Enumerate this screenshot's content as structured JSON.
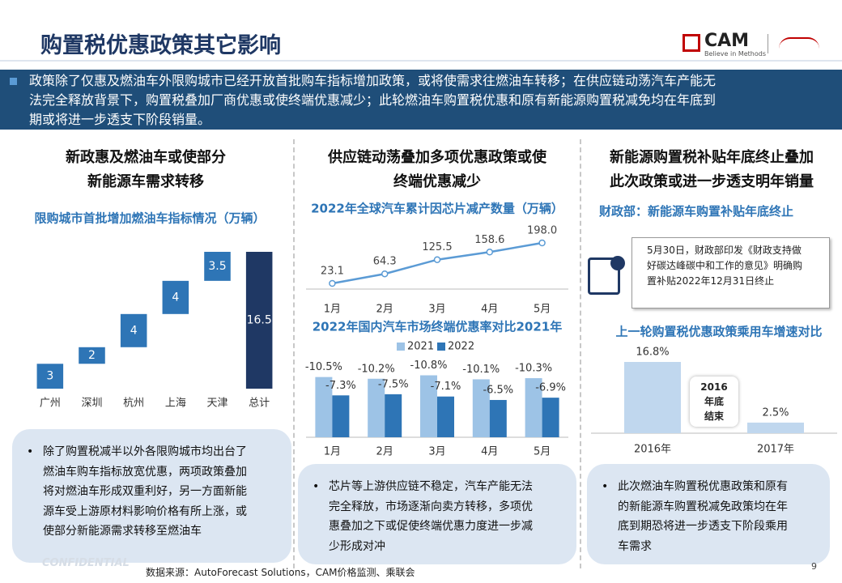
{
  "header": {
    "title": "购置税优惠政策其它影响",
    "logo": "CAM",
    "logo_slogan": "Believe in Methods"
  },
  "banner": [
    "政策除了仅惠及燃油车外限购城市已经开放首批购车指标增加政策，或将使需求往燃油车转移；在供应链动荡汽车产能无",
    "法完全释放背景下，购置税叠加厂商优惠或使终端优惠减少；此轮燃油车购置税优惠和原有新能源购置税减免均在年底到",
    "期或将进一步透支下阶段销量。"
  ],
  "columns": [
    {
      "heading": [
        "新政惠及燃油车或使部分",
        "新能源车需求转移"
      ],
      "bullet": [
        "除了购置税减半以外各限购城市均出台了",
        "燃油车购车指标放宽优惠，两项政策叠加",
        "将对燃油车形成双重利好，另一方面新能",
        "源车受上游原材料影响价格有所上涨，或",
        "使部分新能源需求转移至燃油车"
      ]
    },
    {
      "heading": [
        "供应链动荡叠加多项优惠政策或使",
        "终端优惠减少"
      ],
      "bullet": [
        "芯片等上游供应链不稳定，汽车产能无法",
        "完全释放，市场逐渐向卖方转移，多项优",
        "惠叠加之下或促使终端优惠力度进一步减",
        "少形成对冲"
      ]
    },
    {
      "heading": [
        "新能源购置税补贴年底终止叠加",
        "此次政策或进一步透支明年销量"
      ],
      "bullet": [
        "此次燃油车购置税优惠政策和原有",
        "的新能源车购置税减免政策均在年",
        "底到期恐将进一步透支下阶段乘用",
        "车需求"
      ]
    }
  ],
  "subtitle": "财政部：新能源车购置补贴年底终止",
  "note": [
    "5月30日，财政部印发《财政支持做",
    "好碳达峰碳中和工作的意见》明确购",
    "置补贴2022年12月31日终止"
  ],
  "chart_data": [
    {
      "type": "waterfall",
      "title": "限购城市首批增加燃油车指标情况（万辆）",
      "categories": [
        "广州",
        "深圳",
        "杭州",
        "上海",
        "天津",
        "总计"
      ],
      "values": [
        3,
        2,
        4,
        4,
        3.5,
        16.5
      ],
      "color": "#2e75b6",
      "total_color": "#1f3864",
      "show_total": true
    },
    {
      "type": "line",
      "title": "2022年全球汽车累计因芯片减产数量（万辆）",
      "categories": [
        "1月",
        "2月",
        "3月",
        "4月",
        "5月"
      ],
      "values": [
        23.1,
        64.3,
        125.5,
        158.6,
        198.0
      ],
      "value_labels": [
        "23.1",
        "64.3",
        "125.5",
        "158.6",
        "198.0"
      ],
      "color": "#5b9bd5"
    },
    {
      "type": "bar",
      "title": "2022年国内汽车市场终端优惠率对比2021年",
      "categories": [
        "1月",
        "2月",
        "3月",
        "4月",
        "5月"
      ],
      "ylim": [
        0,
        -12
      ],
      "series": [
        {
          "name": "2021",
          "color": "#9dc3e6",
          "values": [
            -10.5,
            -10.2,
            -10.8,
            -10.1,
            -10.3
          ],
          "value_labels": [
            "-10.5%",
            "-10.2%",
            "-10.8%",
            "-10.1%",
            "-10.3%"
          ]
        },
        {
          "name": "2022",
          "color": "#2e75b6",
          "values": [
            -7.3,
            -7.5,
            -7.1,
            -6.5,
            -6.9
          ],
          "value_labels": [
            "-7.3%",
            "-7.5%",
            "-7.1%",
            "-6.5%",
            "-6.9%"
          ]
        }
      ]
    },
    {
      "type": "bar",
      "title": "上一轮购置税优惠政策乘用车增速对比",
      "categories": [
        "2016年",
        "2017年"
      ],
      "values": [
        16.8,
        2.5
      ],
      "value_labels": [
        "16.8%",
        "2.5%"
      ],
      "color": "#c0d7ee",
      "annotation": [
        "2016",
        "年底",
        "结束"
      ]
    }
  ],
  "footer": {
    "source": "数据来源：AutoForecast Solutions，CAM价格监测、乘联会",
    "page": 9,
    "watermark": "CONFIDENTIAL"
  }
}
